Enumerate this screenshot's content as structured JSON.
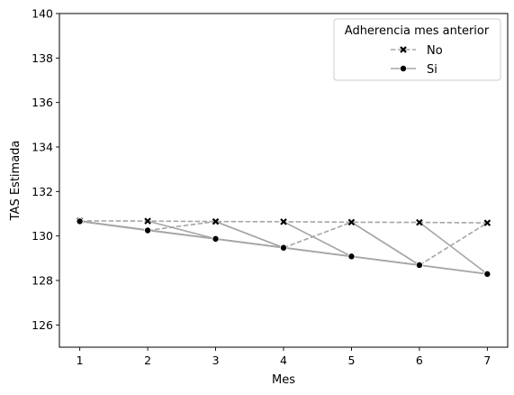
{
  "chart_data": {
    "type": "line",
    "xlabel": "Mes",
    "ylabel": "TAS Estimada",
    "xlim": [
      0.7,
      7.3
    ],
    "ylim": [
      125,
      140
    ],
    "x_ticks": [
      1,
      2,
      3,
      4,
      5,
      6,
      7
    ],
    "y_ticks": [
      126,
      128,
      130,
      132,
      134,
      136,
      138,
      140
    ],
    "grid": false,
    "legend": {
      "title": "Adherencia mes anterior",
      "placement": "top-right",
      "entries": [
        {
          "label": "No",
          "series": "no"
        },
        {
          "label": "Si",
          "series": "si"
        }
      ]
    },
    "series": [
      {
        "id": "no",
        "name": "No",
        "marker": "x",
        "line_style": "dashed",
        "color": "#a6a6a6",
        "marker_color": "#000000",
        "x": [
          1,
          2,
          3,
          4,
          5,
          6,
          7
        ],
        "y": [
          130.68,
          130.67,
          130.65,
          130.64,
          130.62,
          130.61,
          130.59
        ]
      },
      {
        "id": "si",
        "name": "Si",
        "marker": "circle",
        "line_style": "solid",
        "color": "#a6a6a6",
        "marker_color": "#000000",
        "x": [
          1,
          2,
          3,
          4,
          5,
          6,
          7
        ],
        "y": [
          130.66,
          130.25,
          129.87,
          129.47,
          129.08,
          128.69,
          128.29
        ]
      }
    ],
    "path_segments_note_free": true,
    "transitions": [
      {
        "from_series": "no",
        "to_series": "si",
        "from_x": 1,
        "to_x": 2
      },
      {
        "from_series": "si",
        "to_series": "no",
        "from_x": 2,
        "to_x": 3
      },
      {
        "from_series": "no",
        "to_series": "si",
        "from_x": 3,
        "to_x": 4
      },
      {
        "from_series": "si",
        "to_series": "no",
        "from_x": 4,
        "to_x": 5
      },
      {
        "from_series": "no",
        "to_series": "si",
        "from_x": 5,
        "to_x": 6
      },
      {
        "from_series": "si",
        "to_series": "no",
        "from_x": 6,
        "to_x": 7
      },
      {
        "from_series": "si",
        "to_series": "si",
        "from_x": 1,
        "to_x": 3
      },
      {
        "from_series": "si",
        "to_series": "si",
        "from_x": 1,
        "to_x": 4
      },
      {
        "from_series": "si",
        "to_series": "si",
        "from_x": 1,
        "to_x": 5
      },
      {
        "from_series": "si",
        "to_series": "si",
        "from_x": 1,
        "to_x": 6
      },
      {
        "from_series": "si",
        "to_series": "si",
        "from_x": 1,
        "to_x": 7
      },
      {
        "from_series": "no",
        "to_series": "si",
        "from_x": 2,
        "to_x": 3
      },
      {
        "from_series": "no",
        "to_series": "si",
        "from_x": 3,
        "to_x": 4
      },
      {
        "from_series": "no",
        "to_series": "si",
        "from_x": 4,
        "to_x": 5
      },
      {
        "from_series": "no",
        "to_series": "si",
        "from_x": 5,
        "to_x": 6
      },
      {
        "from_series": "no",
        "to_series": "si",
        "from_x": 6,
        "to_x": 7
      }
    ]
  }
}
